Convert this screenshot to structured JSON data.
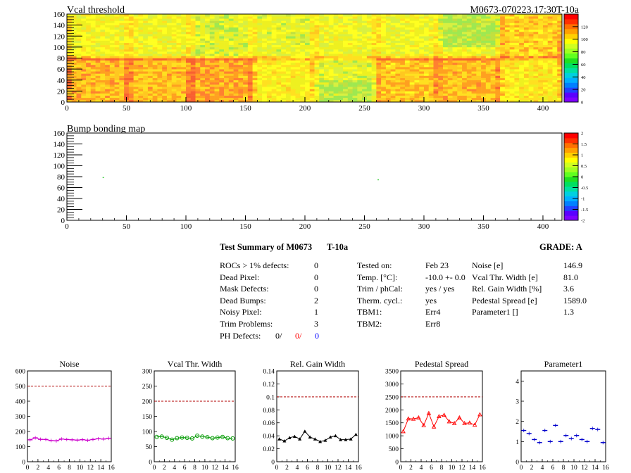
{
  "maps": {
    "vcal": {
      "title": "Vcal threshold",
      "xticks": [
        0,
        50,
        100,
        150,
        200,
        250,
        300,
        350,
        400
      ],
      "yticks": [
        0,
        20,
        40,
        60,
        80,
        100,
        120,
        140,
        160
      ],
      "xlim": [
        0,
        416
      ],
      "ylim": [
        0,
        160
      ],
      "palette_ticks": [
        "0",
        "20",
        "40",
        "60",
        "80",
        "100",
        "120"
      ],
      "palette_range": [
        0,
        140
      ]
    },
    "bump": {
      "title": "Bump bonding map",
      "xticks": [
        0,
        50,
        100,
        150,
        200,
        250,
        300,
        350,
        400
      ],
      "yticks": [
        0,
        20,
        40,
        60,
        80,
        100,
        120,
        140,
        160
      ],
      "xlim": [
        0,
        416
      ],
      "ylim": [
        0,
        160
      ],
      "palette_ticks": [
        "-2",
        "-1.5",
        "-1",
        "-0.5",
        "0",
        "0.5",
        "1",
        "1.5",
        "2"
      ],
      "palette_range": [
        -2,
        2
      ],
      "dead_bumps": [
        {
          "x": 30,
          "y": 78
        },
        {
          "x": 261,
          "y": 74
        }
      ]
    },
    "module_id": "M0673-070223.17:30T-10a"
  },
  "summary": {
    "title": "Test Summary of M0673",
    "temp_label": "T-10a",
    "grade": "GRADE:  A",
    "col1": [
      {
        "label": "ROCs > 1% defects:",
        "value": "0"
      },
      {
        "label": "Dead Pixel:",
        "value": "0"
      },
      {
        "label": "Mask Defects:",
        "value": "0"
      },
      {
        "label": "Dead Bumps:",
        "value": "2"
      },
      {
        "label": "Noisy Pixel:",
        "value": "1"
      },
      {
        "label": "Trim Problems:",
        "value": "3"
      }
    ],
    "ph_label": "PH Defects:",
    "ph_values": [
      "0/",
      "0/",
      "0"
    ],
    "col2": [
      {
        "label": "Tested on:",
        "value": "Feb 23"
      },
      {
        "label": "Temp. [°C]:",
        "value": "-10.0 +- 0.0"
      },
      {
        "label": "Trim / phCal:",
        "value": "yes / yes"
      },
      {
        "label": "Therm. cycl.:",
        "value": "yes"
      },
      {
        "label": "TBM1:",
        "value": "Err4"
      },
      {
        "label": "TBM2:",
        "value": "Err8"
      }
    ],
    "col3": [
      {
        "label": "Noise [e]",
        "value": "146.9"
      },
      {
        "label": "Vcal Thr. Width [e]",
        "value": "81.0"
      },
      {
        "label": "Rel. Gain Width [%]",
        "value": "3.6"
      },
      {
        "label": "Pedestal Spread [e]",
        "value": "1589.0"
      },
      {
        "label": "Parameter1 []",
        "value": "1.3"
      }
    ]
  },
  "chart_data": [
    {
      "type": "line",
      "title": "Noise",
      "color": "#cc00cc",
      "marker": "tick",
      "xlim": [
        0,
        16
      ],
      "ylim": [
        0,
        600
      ],
      "xticks": [
        "0",
        "2",
        "4",
        "6",
        "8",
        "10",
        "12",
        "14",
        "16"
      ],
      "yticks": [
        "0",
        "100",
        "200",
        "300",
        "400",
        "500",
        "600"
      ],
      "limit": 500,
      "values": [
        145,
        158,
        148,
        147,
        140,
        138,
        150,
        147,
        145,
        143,
        146,
        142,
        147,
        152,
        150,
        155
      ]
    },
    {
      "type": "line",
      "title": "Vcal Thr. Width",
      "color": "#009900",
      "marker": "circle",
      "xlim": [
        0,
        16
      ],
      "ylim": [
        0,
        300
      ],
      "xticks": [
        "0",
        "2",
        "4",
        "6",
        "8",
        "10",
        "12",
        "14",
        "16"
      ],
      "yticks": [
        "0",
        "50",
        "100",
        "150",
        "200",
        "250",
        "300"
      ],
      "limit": 200,
      "values": [
        82,
        83,
        79,
        73,
        78,
        80,
        79,
        77,
        86,
        83,
        81,
        78,
        80,
        82,
        78,
        77
      ]
    },
    {
      "type": "line",
      "title": "Rel. Gain Width",
      "color": "#000000",
      "marker": "triangle",
      "xlim": [
        0,
        16
      ],
      "ylim": [
        0,
        0.14
      ],
      "xticks": [
        "0",
        "2",
        "4",
        "6",
        "8",
        "10",
        "12",
        "14",
        "16"
      ],
      "yticks": [
        "0",
        "0.02",
        "0.04",
        "0.06",
        "0.08",
        "0.1",
        "0.12",
        "0.14"
      ],
      "limit": 0.1,
      "values": [
        0.035,
        0.032,
        0.037,
        0.039,
        0.035,
        0.047,
        0.038,
        0.035,
        0.031,
        0.033,
        0.038,
        0.04,
        0.034,
        0.034,
        0.035,
        0.042
      ]
    },
    {
      "type": "line",
      "title": "Pedestal Spread",
      "color": "#ff0000",
      "marker": "triangle-open",
      "xlim": [
        0,
        16
      ],
      "ylim": [
        0,
        3500
      ],
      "xticks": [
        "0",
        "2",
        "4",
        "6",
        "8",
        "10",
        "12",
        "14",
        "16"
      ],
      "yticks": [
        "0",
        "500",
        "1000",
        "1500",
        "2000",
        "2500",
        "3000",
        "3500"
      ],
      "limit": 2500,
      "values": [
        1170,
        1660,
        1650,
        1700,
        1400,
        1870,
        1350,
        1750,
        1800,
        1550,
        1480,
        1700,
        1480,
        1500,
        1420,
        1820
      ]
    },
    {
      "type": "scatter",
      "title": "Parameter1",
      "color": "#0000cc",
      "marker": "tick",
      "xlim": [
        0,
        16
      ],
      "ylim": [
        0,
        4.5
      ],
      "xticks": [
        "0",
        "2",
        "4",
        "6",
        "8",
        "10",
        "12",
        "14",
        "16"
      ],
      "yticks": [
        "0",
        "1",
        "2",
        "3",
        "4"
      ],
      "limit": null,
      "values": [
        1.55,
        1.4,
        1.1,
        0.95,
        1.55,
        1.0,
        1.8,
        1.0,
        1.3,
        1.15,
        1.3,
        1.1,
        1.0,
        1.65,
        1.6,
        0.95
      ]
    }
  ]
}
